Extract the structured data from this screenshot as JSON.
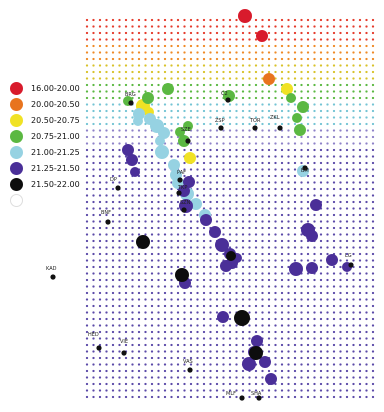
{
  "legend": [
    {
      "label": "16.00-20.00",
      "color": "#d81b2c"
    },
    {
      "label": "20.00-20.50",
      "color": "#e8741e"
    },
    {
      "label": "20.50-20.75",
      "color": "#f0e225"
    },
    {
      "label": "20.75-21.00",
      "color": "#5bb842"
    },
    {
      "label": "21.00-21.25",
      "color": "#96d2e2"
    },
    {
      "label": "21.25-21.50",
      "color": "#4a2f98"
    },
    {
      "label": "21.50-22.00",
      "color": "#0d0d0d"
    },
    {
      "label": "",
      "color": "#ffffff"
    }
  ],
  "stations": [
    {
      "label": "BRG"
    },
    {
      "label": "C2"
    },
    {
      "label": "ZSP"
    },
    {
      "label": "TOR"
    },
    {
      "label": "ZKL"
    },
    {
      "label": "SZE"
    },
    {
      "label": "BM"
    },
    {
      "label": "PAF"
    },
    {
      "label": "TKP"
    },
    {
      "label": "SZN"
    },
    {
      "label": "DP"
    },
    {
      "label": "BNF"
    },
    {
      "label": "KAD"
    },
    {
      "label": "HED"
    },
    {
      "label": "VIE"
    },
    {
      "label": "VAS"
    },
    {
      "label": "MLF"
    },
    {
      "label": "SHA"
    },
    {
      "label": "LG"
    }
  ],
  "grid": {
    "colors": [
      "#e53b2c",
      "#ef8a26",
      "#d8c22a",
      "#5bb842",
      "#74c4d4",
      "#8e82c8",
      "#5b4aa8"
    ]
  },
  "circles": [
    {
      "class": 0
    },
    {
      "class": 0
    },
    {
      "class": 1
    },
    {
      "class": 2
    },
    {
      "class": 2
    },
    {
      "class": 2
    },
    {
      "class": 2
    },
    {
      "class": 3
    },
    {
      "class": 3
    },
    {
      "class": 3
    },
    {
      "class": 3
    },
    {
      "class": 3
    },
    {
      "class": 3
    },
    {
      "class": 3
    },
    {
      "class": 3
    },
    {
      "class": 3
    },
    {
      "class": 3
    },
    {
      "class": 3
    },
    {
      "class": 4
    },
    {
      "class": 4
    },
    {
      "class": 4
    },
    {
      "class": 4
    },
    {
      "class": 4
    },
    {
      "class": 4
    },
    {
      "class": 4
    },
    {
      "class": 4
    },
    {
      "class": 4
    },
    {
      "class": 4
    },
    {
      "class": 4
    },
    {
      "class": 4
    },
    {
      "class": 4
    },
    {
      "class": 4
    },
    {
      "class": 5
    },
    {
      "class": 5
    },
    {
      "class": 5
    },
    {
      "class": 5
    },
    {
      "class": 5
    },
    {
      "class": 5
    },
    {
      "class": 5
    },
    {
      "class": 5
    },
    {
      "class": 5
    },
    {
      "class": 5
    },
    {
      "class": 5
    },
    {
      "class": 5
    },
    {
      "class": 5
    },
    {
      "class": 5
    },
    {
      "class": 5
    },
    {
      "class": 5
    },
    {
      "class": 5
    },
    {
      "class": 5
    },
    {
      "class": 5
    },
    {
      "class": 5
    },
    {
      "class": 5
    },
    {
      "class": 5
    },
    {
      "class": 5
    },
    {
      "class": 5
    },
    {
      "class": 5
    },
    {
      "class": 5
    },
    {
      "class": 5
    },
    {
      "class": 6
    },
    {
      "class": 6
    },
    {
      "class": 6
    },
    {
      "class": 6
    },
    {
      "class": 6
    }
  ]
}
